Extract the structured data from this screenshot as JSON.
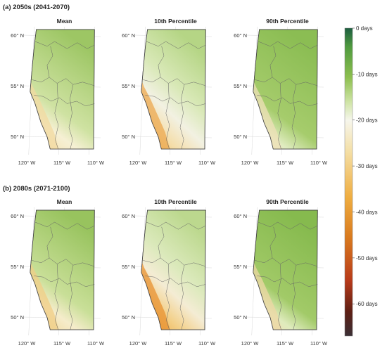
{
  "sections": [
    {
      "title": "(a) 2050s (2041-2070)",
      "panels": [
        {
          "title": "Mean",
          "scheme": "mean50"
        },
        {
          "title": "10th Percentile",
          "scheme": "p10_50"
        },
        {
          "title": "90th Percentile",
          "scheme": "p90_50"
        }
      ]
    },
    {
      "title": "(b) 2080s (2071-2100)",
      "panels": [
        {
          "title": "Mean",
          "scheme": "mean80"
        },
        {
          "title": "10th Percentile",
          "scheme": "p10_80"
        },
        {
          "title": "90th Percentile",
          "scheme": "p90_80"
        }
      ]
    }
  ],
  "axes": {
    "lat_ticks": [
      "60° N",
      "55° N",
      "50° N"
    ],
    "lon_ticks": [
      "120° W",
      "115° W",
      "110° W"
    ]
  },
  "colorbar": {
    "ticks": [
      "0 days",
      "-10 days",
      "-20 days",
      "-30 days",
      "-40 days",
      "-50 days",
      "-60 days"
    ],
    "min": -67,
    "max": 0,
    "colors": {
      "top": "#1d5e40",
      "green_dark": "#4f9a3f",
      "green": "#8dbf4f",
      "green_light": "#cfe4a6",
      "white": "#f6f6ec",
      "cream": "#f4dfa6",
      "orange": "#efad40",
      "dark_orange": "#d97a1e",
      "red": "#b83a1a",
      "dark_red": "#5e1f14",
      "bottom": "#3b2f35"
    }
  }
}
